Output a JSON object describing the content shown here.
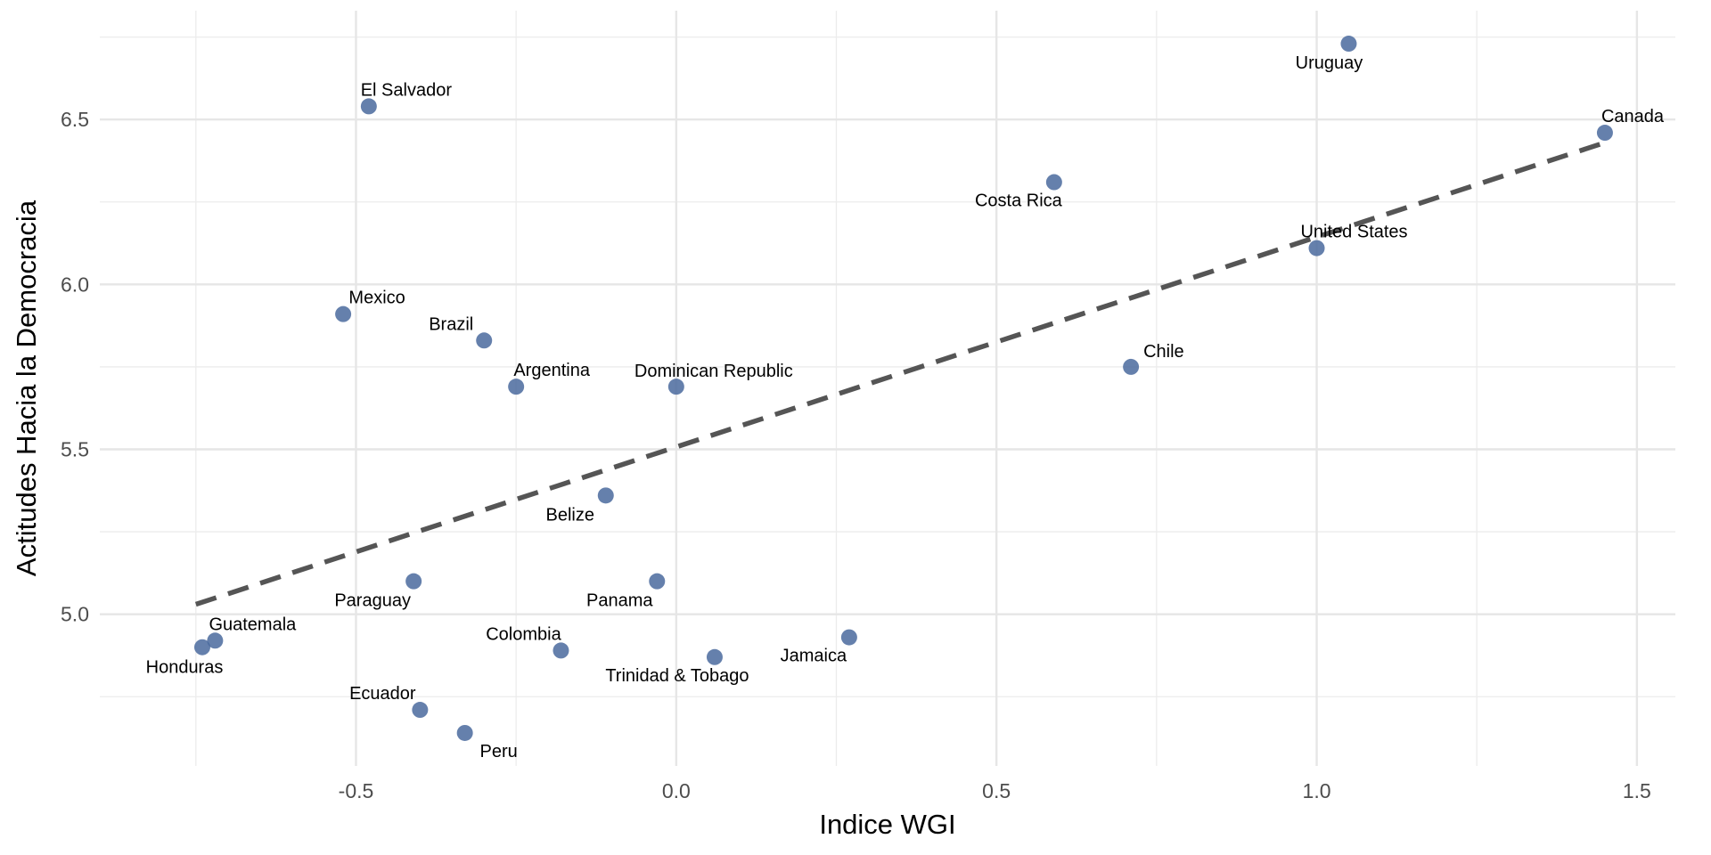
{
  "chart_data": {
    "type": "scatter",
    "xlabel": "Indice WGI",
    "ylabel": "Actitudes Hacia la Democracia",
    "xlim": [
      -0.9,
      1.56
    ],
    "ylim": [
      4.54,
      6.83
    ],
    "x_ticks": [
      -0.5,
      0.0,
      0.5,
      1.0,
      1.5
    ],
    "x_tick_labels": [
      "-0.5",
      "0.0",
      "0.5",
      "1.0",
      "1.5"
    ],
    "y_ticks": [
      5.0,
      5.5,
      6.0,
      6.5
    ],
    "y_tick_labels": [
      "5.0",
      "5.5",
      "6.0",
      "6.5"
    ],
    "grid": true,
    "legend": "none",
    "point_color": "#4a6a9e",
    "trend_line": {
      "style": "dashed",
      "color": "#555555",
      "x": [
        -0.75,
        1.45
      ],
      "y": [
        5.03,
        6.43
      ]
    },
    "points": [
      {
        "label": "Uruguay",
        "x": 1.05,
        "y": 6.73
      },
      {
        "label": "El Salvador",
        "x": -0.48,
        "y": 6.54
      },
      {
        "label": "Canada",
        "x": 1.45,
        "y": 6.46
      },
      {
        "label": "Costa Rica",
        "x": 0.59,
        "y": 6.31
      },
      {
        "label": "United States",
        "x": 1.0,
        "y": 6.11
      },
      {
        "label": "Mexico",
        "x": -0.52,
        "y": 5.91
      },
      {
        "label": "Brazil",
        "x": -0.3,
        "y": 5.83
      },
      {
        "label": "Chile",
        "x": 0.71,
        "y": 5.75
      },
      {
        "label": "Argentina",
        "x": -0.25,
        "y": 5.69
      },
      {
        "label": "Dominican Republic",
        "x": 0.0,
        "y": 5.69
      },
      {
        "label": "Belize",
        "x": -0.11,
        "y": 5.36
      },
      {
        "label": "Panama",
        "x": -0.03,
        "y": 5.1
      },
      {
        "label": "Paraguay",
        "x": -0.41,
        "y": 5.1
      },
      {
        "label": "Jamaica",
        "x": 0.27,
        "y": 4.93
      },
      {
        "label": "Guatemala",
        "x": -0.72,
        "y": 4.92
      },
      {
        "label": "Honduras",
        "x": -0.74,
        "y": 4.9
      },
      {
        "label": "Colombia",
        "x": -0.18,
        "y": 4.89
      },
      {
        "label": "Trinidad & Tobago",
        "x": 0.06,
        "y": 4.87
      },
      {
        "label": "Ecuador",
        "x": -0.4,
        "y": 4.71
      },
      {
        "label": "Peru",
        "x": -0.33,
        "y": 4.64
      }
    ]
  }
}
